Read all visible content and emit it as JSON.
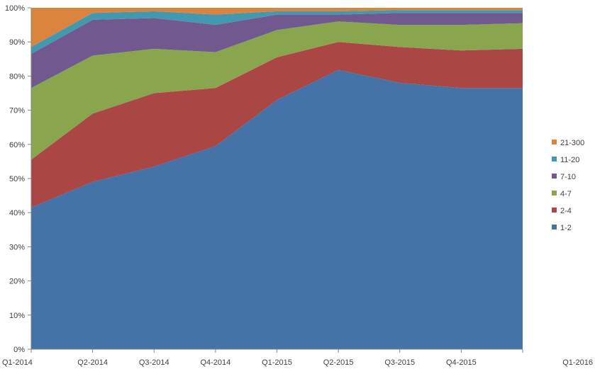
{
  "chart_data": {
    "type": "area",
    "stacked": true,
    "percent": true,
    "categories": [
      "Q1-2014",
      "Q2-2014",
      "Q3-2014",
      "Q4-2014",
      "Q1-2015",
      "Q2-2015",
      "Q3-2015",
      "Q4-2015",
      "Q1-2016"
    ],
    "ylim": [
      0,
      100
    ],
    "yticks": [
      "0%",
      "10%",
      "20%",
      "30%",
      "40%",
      "50%",
      "60%",
      "70%",
      "80%",
      "90%",
      "100%"
    ],
    "legend_position": "right",
    "grid": false,
    "series": [
      {
        "name": "1-2",
        "color": "#4572A7",
        "values": [
          41.5,
          49.0,
          53.5,
          59.5,
          73.0,
          81.8,
          78.0,
          76.5,
          76.5
        ]
      },
      {
        "name": "2-4",
        "color": "#AA4643",
        "values": [
          14.0,
          20.0,
          21.5,
          17.0,
          12.5,
          8.2,
          10.5,
          11.0,
          11.5
        ]
      },
      {
        "name": "4-7",
        "color": "#89A54E",
        "values": [
          21.0,
          17.0,
          13.0,
          10.5,
          8.0,
          6.0,
          6.5,
          7.5,
          7.5
        ]
      },
      {
        "name": "7-10",
        "color": "#71588F",
        "values": [
          10.0,
          10.5,
          9.0,
          8.0,
          4.5,
          2.0,
          3.5,
          3.5,
          3.0
        ]
      },
      {
        "name": "11-20",
        "color": "#4198AF",
        "values": [
          2.0,
          2.0,
          2.0,
          3.0,
          1.0,
          1.0,
          0.8,
          0.8,
          0.8
        ]
      },
      {
        "name": "21-300",
        "color": "#DB843D",
        "values": [
          11.5,
          1.5,
          1.0,
          2.0,
          1.0,
          1.0,
          0.7,
          0.7,
          0.7
        ]
      }
    ]
  }
}
